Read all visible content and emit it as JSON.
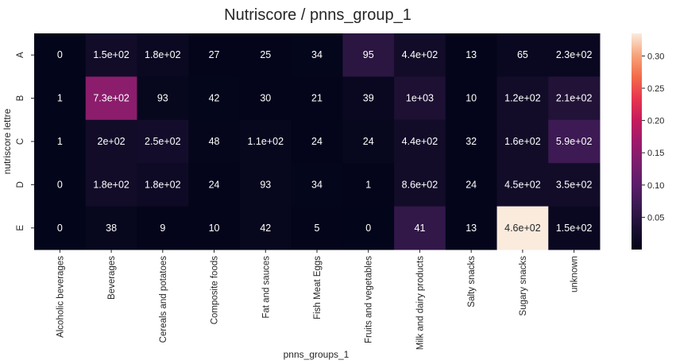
{
  "chart_data": {
    "type": "heatmap",
    "title": "Nutriscore / pnns_group_1",
    "xlabel": "pnns_groups_1",
    "ylabel": "nutriscore lettre",
    "x_categories": [
      "Alcoholic beverages",
      "Beverages",
      "Cereals and potatoes",
      "Composite foods",
      "Fat and sauces",
      "Fish Meat Eggs",
      "Fruits and vegetables",
      "Milk and dairy products",
      "Salty snacks",
      "Sugary snacks",
      "unknown"
    ],
    "y_categories": [
      "A",
      "B",
      "C",
      "D",
      "E"
    ],
    "annotations": [
      [
        "0",
        "1.5e+02",
        "1.8e+02",
        "27",
        "25",
        "34",
        "95",
        "4.4e+02",
        "13",
        "65",
        "2.3e+02"
      ],
      [
        "1",
        "7.3e+02",
        "93",
        "42",
        "30",
        "21",
        "39",
        "1e+03",
        "10",
        "1.2e+02",
        "2.1e+02"
      ],
      [
        "1",
        "2e+02",
        "2.5e+02",
        "48",
        "1.1e+02",
        "24",
        "24",
        "4.4e+02",
        "32",
        "1.6e+02",
        "5.9e+02"
      ],
      [
        "0",
        "1.8e+02",
        "1.8e+02",
        "24",
        "93",
        "34",
        "1",
        "8.6e+02",
        "24",
        "4.5e+02",
        "3.5e+02"
      ],
      [
        "0",
        "38",
        "9",
        "10",
        "42",
        "5",
        "0",
        "41",
        "13",
        "4.6e+02",
        "1.5e+02"
      ]
    ],
    "values": [
      [
        0.0,
        0.02,
        0.011,
        0.001,
        0.001,
        0.002,
        0.05,
        0.02,
        0.001,
        0.01,
        0.01
      ],
      [
        0.0005,
        0.15,
        0.005,
        0.002,
        0.001,
        0.001,
        0.01,
        0.035,
        0.001,
        0.02,
        0.04
      ],
      [
        0.0005,
        0.02,
        0.022,
        0.003,
        0.005,
        0.001,
        0.005,
        0.02,
        0.001,
        0.02,
        0.07
      ],
      [
        0.0,
        0.02,
        0.015,
        0.001,
        0.005,
        0.002,
        0.001,
        0.02,
        0.001,
        0.02,
        0.02
      ],
      [
        0.0,
        0.005,
        0.001,
        0.001,
        0.005,
        0.001,
        0.0,
        0.058,
        0.001,
        0.335,
        0.01
      ]
    ],
    "colorbar": {
      "min": 0.0,
      "max": 0.335,
      "ticks": [
        0.05,
        0.1,
        0.15,
        0.2,
        0.25,
        0.3
      ],
      "tick_labels": [
        "0.05",
        "0.10",
        "0.15",
        "0.20",
        "0.25",
        "0.30"
      ]
    },
    "colormap": "rocket",
    "grid": false
  }
}
